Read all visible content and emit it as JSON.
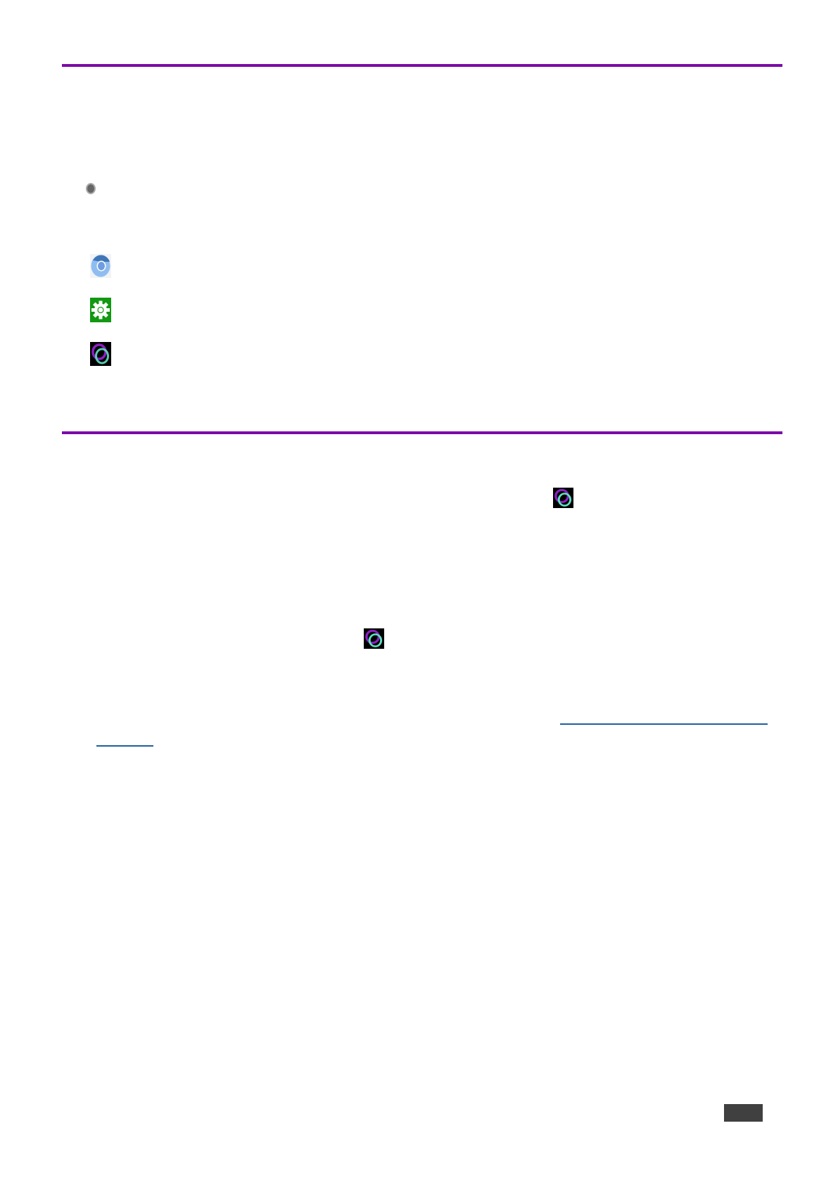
{
  "colors": {
    "section_rule": "#7b0aa8",
    "link": "#1f5f9e",
    "page_number_box": "#404040"
  },
  "icons": {
    "bullet": "radio-bullet-icon",
    "list": [
      "chromium-browser-icon",
      "settings-gear-icon",
      "kramer-app-ring-icon"
    ],
    "inline": [
      "kramer-app-ring-icon",
      "kramer-app-ring-icon"
    ]
  }
}
